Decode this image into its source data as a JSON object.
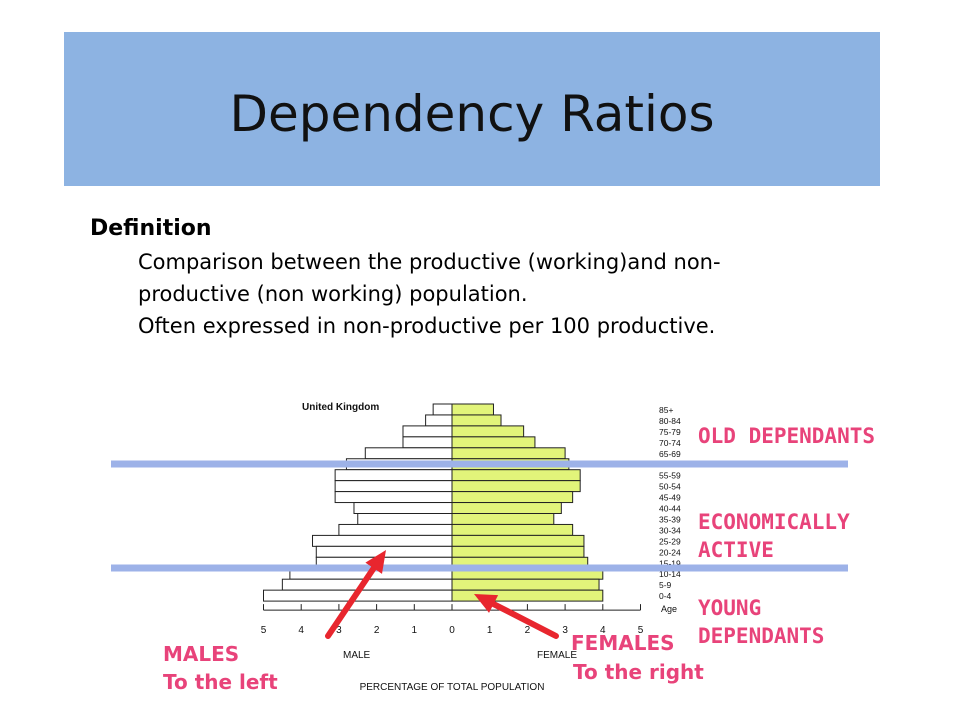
{
  "slide": {
    "title": "Dependency Ratios",
    "definition_heading": "Definition",
    "definition_lines": [
      "Comparison between the productive (working)and non-",
      "productive (non working) population.",
      "Often expressed in non-productive per 100 productive."
    ]
  },
  "annotations": {
    "old": "OLD DEPENDANTS",
    "active_1": "ECONOMICALLY",
    "active_2": "ACTIVE",
    "young_1": "YOUNG",
    "young_2": "DEPENDANTS",
    "males": "MALES",
    "males_sub": "To the left",
    "females": "FEMALES",
    "females_sub": "To the right"
  },
  "colors": {
    "title_band": "#8db3e2",
    "female_fill": "#e2f47a",
    "male_fill": "#ffffff",
    "divider": "#9db2e8",
    "annotation": "#e8437a",
    "arrow": "#e8262e"
  },
  "chart_data": {
    "type": "bar",
    "title": "United Kingdom",
    "xlabel": "PERCENTAGE OF TOTAL POPULATION",
    "male_label": "MALE",
    "female_label": "FEMALE",
    "age_header": "Age",
    "categories": [
      "85+",
      "80-84",
      "75-79",
      "70-74",
      "65-69",
      "60-64",
      "55-59",
      "50-54",
      "45-49",
      "40-44",
      "35-39",
      "30-34",
      "25-29",
      "20-24",
      "15-19",
      "10-14",
      "5-9",
      "0-4"
    ],
    "series": [
      {
        "name": "MALE",
        "values": [
          0.5,
          0.7,
          1.3,
          1.3,
          2.3,
          2.8,
          3.1,
          3.1,
          3.1,
          2.6,
          2.5,
          3.0,
          3.7,
          3.6,
          3.6,
          4.3,
          4.5,
          5.0
        ]
      },
      {
        "name": "FEMALE",
        "values": [
          1.1,
          1.3,
          1.9,
          2.2,
          3.0,
          3.1,
          3.4,
          3.4,
          3.2,
          2.9,
          2.7,
          3.2,
          3.5,
          3.5,
          3.6,
          4.0,
          3.9,
          4.0
        ]
      }
    ],
    "x_ticks": [
      5,
      4,
      3,
      2,
      1,
      0,
      1,
      2,
      3,
      4,
      5
    ],
    "xlim": [
      -5,
      5
    ]
  }
}
